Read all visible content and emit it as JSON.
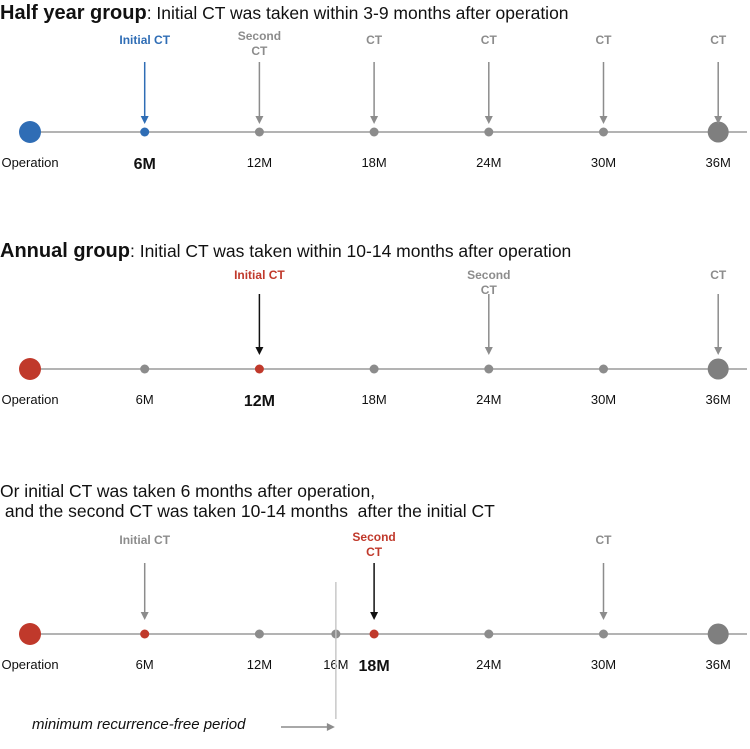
{
  "colors": {
    "blue": "#2f6db5",
    "red": "#c0392b",
    "gray": "#8c8c8c",
    "axis": "#9a9a9a",
    "endpoint": "#7f7f7f",
    "black": "#111111"
  },
  "panel1": {
    "title_bold": "Half year group",
    "title_rest": ": Initial CT was taken within 3-9 months after operation",
    "axis": {
      "start_label": "Operation",
      "ticks": [
        "6M",
        "12M",
        "18M",
        "24M",
        "30M",
        "36M"
      ],
      "bold_tick": "6M",
      "tick_colors": [
        "blue",
        "gray",
        "gray",
        "gray",
        "gray",
        "endpoint"
      ]
    },
    "arrows": [
      {
        "tick": "6M",
        "label": [
          "Initial CT"
        ],
        "color": "blue"
      },
      {
        "tick": "12M",
        "label": [
          "Second",
          "CT"
        ],
        "color": "gray"
      },
      {
        "tick": "18M",
        "label": [
          "CT"
        ],
        "color": "gray"
      },
      {
        "tick": "24M",
        "label": [
          "CT"
        ],
        "color": "gray"
      },
      {
        "tick": "30M",
        "label": [
          "CT"
        ],
        "color": "gray"
      },
      {
        "tick": "36M",
        "label": [
          "CT"
        ],
        "color": "gray"
      }
    ]
  },
  "panel2": {
    "title_bold": "Annual group",
    "title_rest": ": Initial CT was taken within 10-14 months after operation",
    "axis": {
      "start_label": "Operation",
      "ticks": [
        "6M",
        "12M",
        "18M",
        "24M",
        "30M",
        "36M"
      ],
      "bold_tick": "12M",
      "tick_colors": [
        "gray",
        "red",
        "gray",
        "gray",
        "gray",
        "endpoint"
      ]
    },
    "arrows": [
      {
        "tick": "12M",
        "label": [
          "Initial CT"
        ],
        "color": "red",
        "arrow_color": "black"
      },
      {
        "tick": "24M",
        "label": [
          "Second",
          "CT"
        ],
        "color": "gray"
      },
      {
        "tick": "36M",
        "label": [
          "CT"
        ],
        "color": "gray"
      }
    ]
  },
  "panel3": {
    "line1": "Or initial CT was taken 6 months after operation,",
    "line2": " and the second CT was taken 10-14 months  after the initial CT",
    "axis": {
      "start_label": "Operation",
      "ticks": [
        "6M",
        "12M",
        "16M",
        "18M",
        "24M",
        "30M",
        "36M"
      ],
      "bold_tick": "18M",
      "tick_colors": [
        "red",
        "gray",
        "gray",
        "red",
        "gray",
        "gray",
        "endpoint"
      ]
    },
    "arrows": [
      {
        "tick": "6M",
        "label": [
          "Initial CT"
        ],
        "color": "gray"
      },
      {
        "tick": "18M",
        "label": [
          "Second",
          "CT"
        ],
        "color": "red",
        "arrow_color": "black"
      },
      {
        "tick": "30M",
        "label": [
          "CT"
        ],
        "color": "gray"
      }
    ],
    "marker_tick": "16M",
    "note": "minimum recurrence-free period"
  }
}
